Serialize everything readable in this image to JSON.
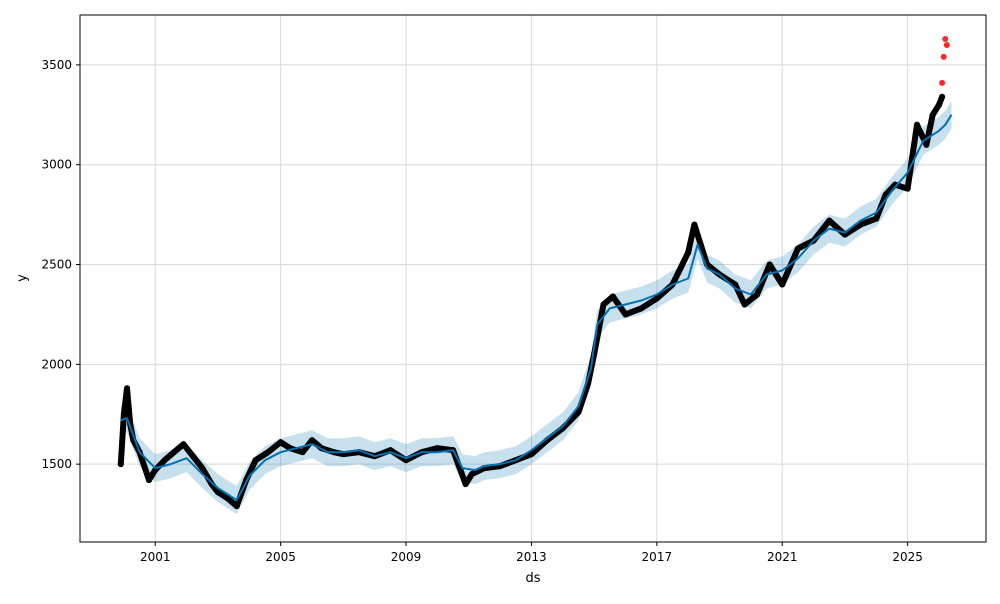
{
  "chart_data": {
    "type": "line",
    "title": "",
    "xlabel": "ds",
    "ylabel": "y",
    "x_ticks": [
      "2001",
      "2005",
      "2009",
      "2013",
      "2017",
      "2021",
      "2025"
    ],
    "y_ticks": [
      1500,
      2000,
      2500,
      3000,
      3500
    ],
    "xlim": [
      1998.6,
      2027.5
    ],
    "ylim": [
      1110,
      3750
    ],
    "grid": true,
    "legend": "none",
    "colors": {
      "observed": "#000000",
      "forecast": "#0072b2",
      "interval": "#0072b2",
      "anomaly": "#ff0000",
      "grid": "#d9d9d9"
    },
    "series": [
      {
        "role": "observed",
        "x": [
          1999.9,
          2000.0,
          2000.1,
          2000.2,
          2000.3,
          2000.5,
          2000.8,
          2001.0,
          2001.3,
          2001.6,
          2001.9,
          2002.2,
          2002.5,
          2002.8,
          2003.0,
          2003.3,
          2003.6,
          2003.9,
          2004.2,
          2004.6,
          2005.0,
          2005.3,
          2005.7,
          2006.0,
          2006.3,
          2006.7,
          2007.0,
          2007.5,
          2008.0,
          2008.5,
          2009.0,
          2009.5,
          2010.0,
          2010.5,
          2010.9,
          2011.1,
          2011.5,
          2012.0,
          2012.5,
          2013.0,
          2013.5,
          2014.0,
          2014.5,
          2014.8,
          2015.0,
          2015.3,
          2015.6,
          2016.0,
          2016.5,
          2017.0,
          2017.5,
          2018.0,
          2018.2,
          2018.6,
          2019.0,
          2019.5,
          2019.8,
          2020.2,
          2020.6,
          2021.0,
          2021.5,
          2022.0,
          2022.5,
          2023.0,
          2023.5,
          2024.0,
          2024.3,
          2024.6,
          2025.0,
          2025.3,
          2025.6,
          2025.8,
          2026.0,
          2026.1
        ],
        "y": [
          1500,
          1750,
          1880,
          1700,
          1620,
          1560,
          1420,
          1470,
          1520,
          1560,
          1600,
          1540,
          1480,
          1400,
          1360,
          1330,
          1290,
          1420,
          1520,
          1560,
          1610,
          1580,
          1560,
          1620,
          1580,
          1560,
          1550,
          1560,
          1540,
          1570,
          1520,
          1560,
          1580,
          1570,
          1400,
          1450,
          1480,
          1490,
          1520,
          1550,
          1620,
          1680,
          1760,
          1900,
          2050,
          2300,
          2340,
          2250,
          2280,
          2330,
          2400,
          2560,
          2700,
          2500,
          2450,
          2400,
          2300,
          2350,
          2500,
          2400,
          2580,
          2620,
          2720,
          2650,
          2700,
          2730,
          2850,
          2900,
          2880,
          3200,
          3100,
          3250,
          3300,
          3340
        ]
      },
      {
        "role": "forecast",
        "x": [
          1999.9,
          2000.1,
          2000.5,
          2001.0,
          2001.5,
          2002.0,
          2002.5,
          2003.0,
          2003.3,
          2003.6,
          2004.0,
          2004.5,
          2005.0,
          2005.5,
          2006.0,
          2006.5,
          2007.0,
          2007.5,
          2008.0,
          2008.5,
          2009.0,
          2009.5,
          2010.0,
          2010.5,
          2010.8,
          2011.2,
          2011.5,
          2012.0,
          2012.5,
          2013.0,
          2013.5,
          2014.0,
          2014.5,
          2014.9,
          2015.1,
          2015.5,
          2016.0,
          2016.5,
          2017.0,
          2017.5,
          2018.0,
          2018.3,
          2018.6,
          2019.0,
          2019.5,
          2020.0,
          2020.5,
          2021.0,
          2021.5,
          2022.0,
          2022.5,
          2023.0,
          2023.5,
          2024.0,
          2024.5,
          2025.0,
          2025.5,
          2026.0,
          2026.2,
          2026.4
        ],
        "y": [
          1720,
          1730,
          1560,
          1480,
          1500,
          1530,
          1450,
          1380,
          1350,
          1320,
          1440,
          1520,
          1560,
          1580,
          1600,
          1560,
          1560,
          1570,
          1540,
          1560,
          1530,
          1560,
          1560,
          1570,
          1480,
          1470,
          1490,
          1500,
          1520,
          1570,
          1630,
          1690,
          1790,
          1980,
          2200,
          2280,
          2300,
          2320,
          2350,
          2400,
          2430,
          2600,
          2480,
          2450,
          2380,
          2350,
          2450,
          2470,
          2530,
          2620,
          2680,
          2660,
          2720,
          2760,
          2870,
          2960,
          3120,
          3170,
          3200,
          3250
        ]
      },
      {
        "role": "anomaly",
        "x": [
          2026.1,
          2026.15,
          2026.2,
          2026.25
        ],
        "y": [
          3410,
          3540,
          3630,
          3600
        ]
      }
    ],
    "interval_half_width": 70
  }
}
